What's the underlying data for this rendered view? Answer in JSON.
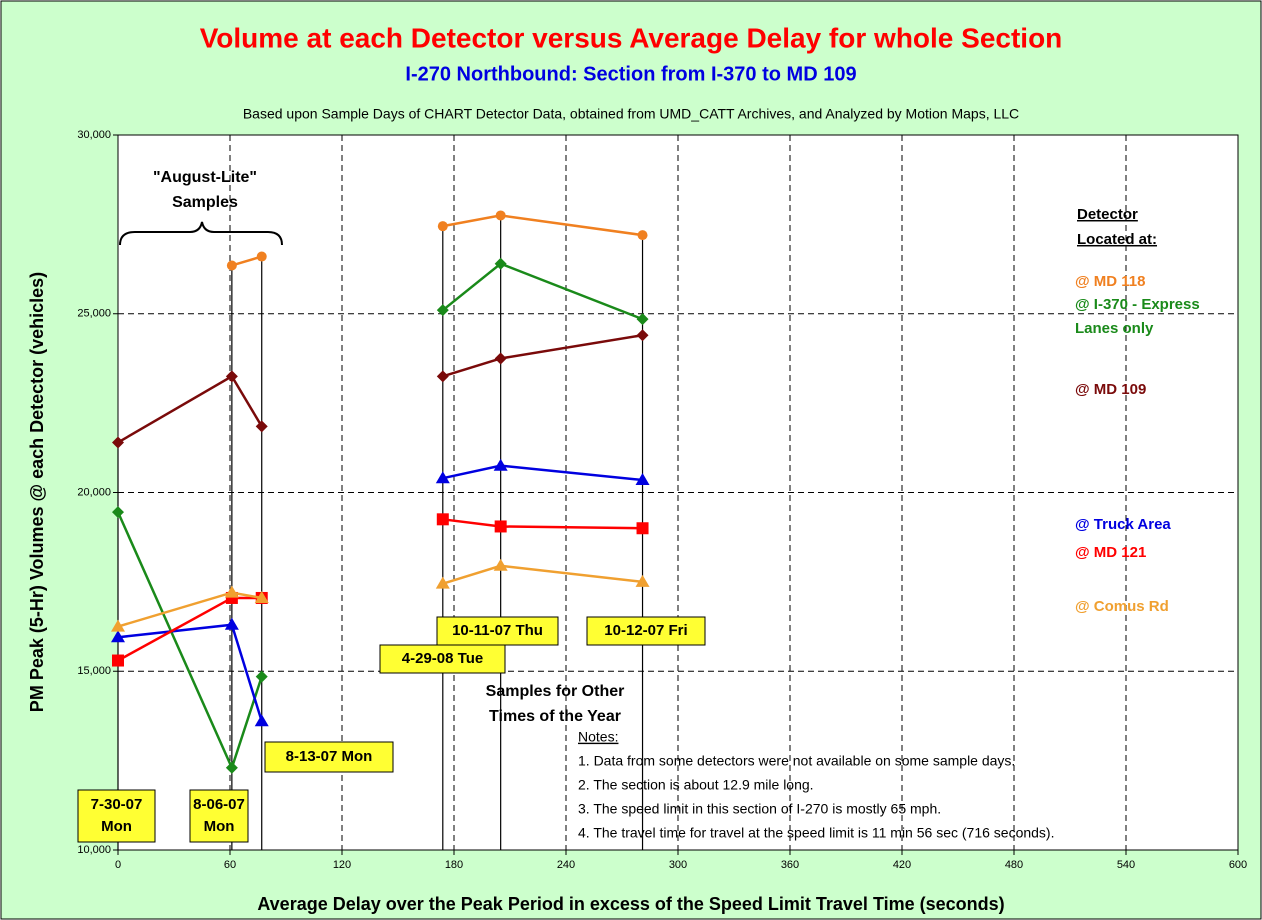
{
  "chart_data": {
    "type": "line",
    "title": "Volume at each Detector versus Average Delay for whole Section",
    "subtitle": "I-270 Northbound: Section from I-370 to MD 109",
    "note": "Based upon Sample Days of CHART Detector Data, obtained from UMD_CATT Archives, and Analyzed by Motion Maps, LLC",
    "xlabel": "Average Delay over the Peak Period in excess of the Speed Limit Travel Time (seconds)",
    "ylabel": "PM Peak (5-Hr) Volumes @ each Detector (vehicles)",
    "x": [
      0,
      61,
      77,
      null,
      174,
      205,
      281
    ],
    "series": [
      {
        "name": "@ MD 118",
        "color": "#f08020",
        "marker": "circle",
        "values": [
          null,
          26350,
          26600,
          null,
          27450,
          27750,
          27200
        ]
      },
      {
        "name": "@ I-370 - Express Lanes only",
        "color": "#1a8a1a",
        "marker": "diamond",
        "values": [
          19450,
          12300,
          14850,
          null,
          25100,
          26400,
          24850
        ]
      },
      {
        "name": "@ MD 109",
        "color": "#7a0a0a",
        "marker": "diamond",
        "values": [
          21400,
          23250,
          21850,
          null,
          23250,
          23750,
          24400
        ]
      },
      {
        "name": "@ Truck Area",
        "color": "#0000e0",
        "marker": "triangle",
        "values": [
          15950,
          16300,
          13600,
          null,
          20400,
          20750,
          20350
        ]
      },
      {
        "name": "@ MD 121",
        "color": "#ff0000",
        "marker": "square",
        "values": [
          15300,
          17050,
          17050,
          null,
          19250,
          19050,
          19000
        ]
      },
      {
        "name": "@ Comus Rd",
        "color": "#f0a030",
        "marker": "triangle",
        "values": [
          16250,
          17200,
          17050,
          null,
          17450,
          17950,
          17500
        ]
      }
    ],
    "xlim": [
      0,
      600
    ],
    "xticks": [
      0,
      60,
      120,
      180,
      240,
      300,
      360,
      420,
      480,
      540,
      600
    ],
    "ylim": [
      10000,
      30000
    ],
    "yticks": [
      {
        "value": 10000,
        "label": "10,000"
      },
      {
        "value": 15000,
        "label": "15,000"
      },
      {
        "value": 20000,
        "label": "20,000"
      },
      {
        "value": 25000,
        "label": "25,000"
      },
      {
        "value": 30000,
        "label": "30,000"
      }
    ],
    "grid": true,
    "legend_title": [
      "Detector",
      "Located at:"
    ],
    "date_labels": [
      [
        "7-30-07",
        "Mon"
      ],
      [
        "8-06-07",
        "Mon"
      ],
      [
        "8-13-07 Mon"
      ],
      [
        "4-29-08 Tue"
      ],
      [
        "10-11-07 Thu"
      ],
      [
        "10-12-07 Fri"
      ]
    ],
    "group_labels": [
      [
        "\"August-Lite\"",
        "Samples"
      ],
      [
        "Samples for Other",
        "Times of the Year"
      ]
    ],
    "notes": {
      "title": "Notes:",
      "items": [
        "1. Data from some detectors were not available on some sample days.",
        "2. The section is about 12.9 mile long.",
        "3. The speed limit in this section of I-270 is mostly 65 mph.",
        "4. The travel time for travel at the speed limit is 11 min 56 sec (716 seconds)."
      ]
    }
  }
}
